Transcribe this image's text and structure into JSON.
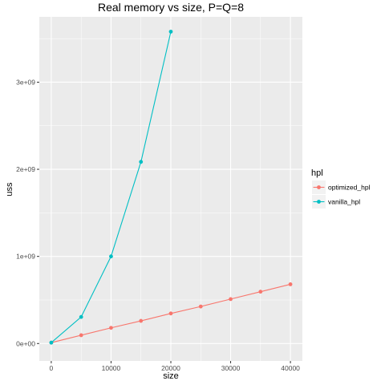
{
  "chart_data": {
    "type": "line",
    "title": "Real memory vs size, P=Q=8",
    "xlabel": "size",
    "ylabel": "uss",
    "xlim": [
      -2000,
      42000
    ],
    "ylim": [
      -200000000,
      3750000000
    ],
    "x_ticks": [
      0,
      10000,
      20000,
      30000,
      40000
    ],
    "x_tick_labels": [
      "0",
      "10000",
      "20000",
      "30000",
      "40000"
    ],
    "y_ticks": [
      0,
      1000000000,
      2000000000,
      3000000000
    ],
    "y_tick_labels": [
      "0e+00",
      "1e+09",
      "2e+09",
      "3e+09"
    ],
    "grid": true,
    "legend": {
      "title": "hpl",
      "position": "right",
      "entries": [
        "optimized_hpl",
        "vanilla_hpl"
      ]
    },
    "series": [
      {
        "name": "optimized_hpl",
        "color": "#F8766D",
        "x": [
          0,
          5000,
          10000,
          15000,
          20000,
          25000,
          30000,
          35000,
          40000
        ],
        "y": [
          10000000,
          95000000,
          180000000,
          260000000,
          345000000,
          425000000,
          510000000,
          595000000,
          680000000
        ]
      },
      {
        "name": "vanilla_hpl",
        "color": "#00BFC4",
        "x": [
          0,
          5000,
          10000,
          15000,
          20000
        ],
        "y": [
          10000000,
          305000000,
          1000000000,
          2085000000,
          3580000000
        ]
      }
    ]
  }
}
